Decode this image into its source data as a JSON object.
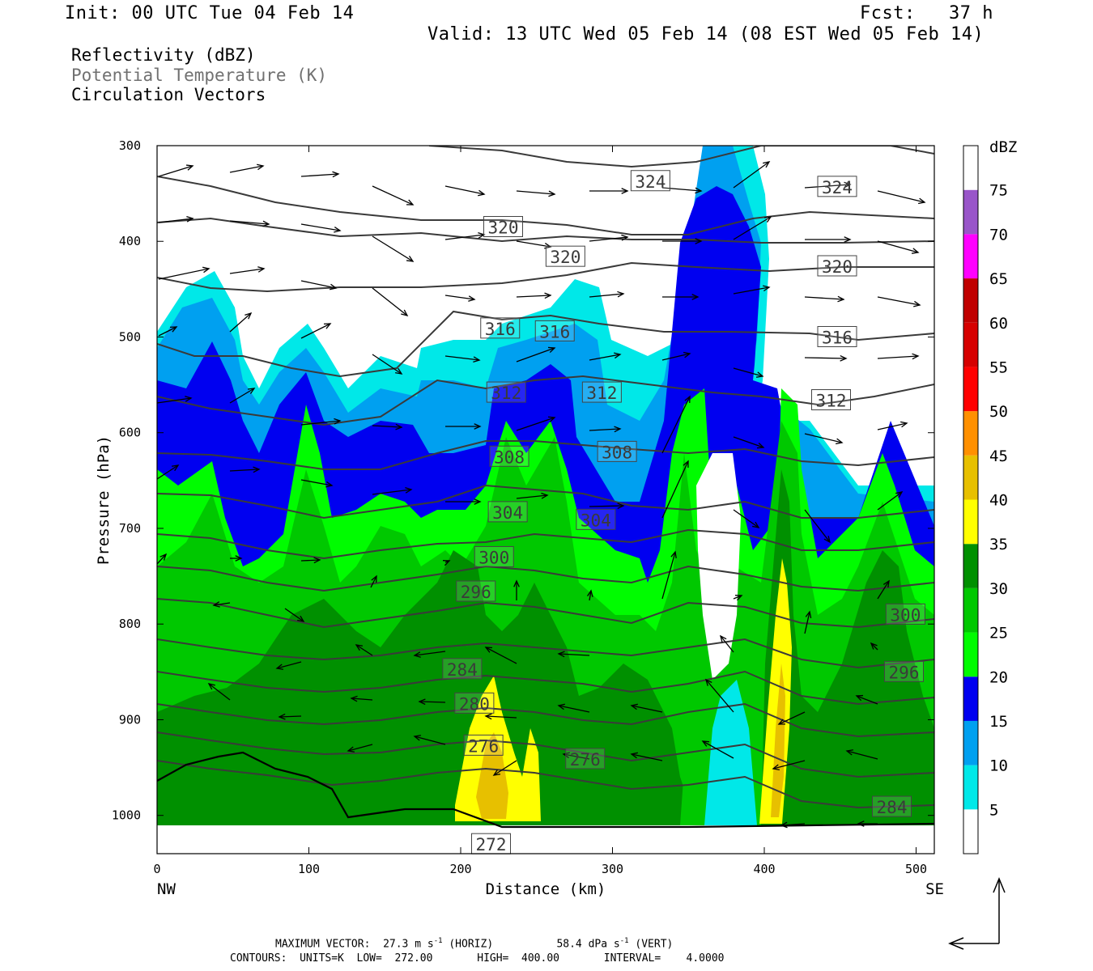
{
  "header": {
    "init": "Init: 00 UTC Tue 04 Feb 14",
    "fcst": "Fcst:   37 h",
    "valid": "Valid: 13 UTC Wed 05 Feb 14 (08 EST Wed 05 Feb 14)"
  },
  "fields": [
    "Reflectivity (dBZ)",
    "Potential Temperature (K)",
    "Circulation Vectors"
  ],
  "footer": {
    "max_label": "MAXIMUM VECTOR:",
    "horiz_value": "27.3 m s",
    "horiz_suffix": " (HORIZ)",
    "vert_value": "58.4 dPa s",
    "vert_suffix": " (VERT)",
    "exp": "-1",
    "contours": "CONTOURS:  UNITS=K  LOW=  272.00       HIGH=  400.00       INTERVAL=    4.0000"
  },
  "colors": {
    "dbz": [
      "#00e8e8",
      "#00a0f0",
      "#0000f0",
      "#00fc00",
      "#00c800",
      "#009000",
      "#ffff00",
      "#e7c000",
      "#ff9000",
      "#ff0000",
      "#d60000",
      "#c00000",
      "#ff00ff",
      "#9955c9",
      "#ffffff"
    ],
    "theta_line": "#3a3a3a",
    "terrain": "#ffffff"
  },
  "chart_data": {
    "type": "cross-section",
    "xlabel": "Distance (km)",
    "ylabel": "Pressure (hPa)",
    "x_ticks": [
      0,
      100,
      200,
      300,
      400,
      500
    ],
    "y_ticks": [
      300,
      400,
      500,
      600,
      700,
      800,
      900,
      1000
    ],
    "xlim": [
      0,
      512
    ],
    "ylim": [
      1040,
      300
    ],
    "left_end": "NW",
    "right_end": "SE",
    "colorbar": {
      "title": "dBZ",
      "levels": [
        5,
        10,
        15,
        20,
        25,
        30,
        35,
        40,
        45,
        50,
        55,
        60,
        65,
        70,
        75
      ]
    },
    "theta_labels": [
      {
        "value": "324",
        "x": 325,
        "p": 337
      },
      {
        "value": "324",
        "x": 448,
        "p": 343
      },
      {
        "value": "320",
        "x": 228,
        "p": 385
      },
      {
        "value": "320",
        "x": 269,
        "p": 416
      },
      {
        "value": "320",
        "x": 448,
        "p": 426
      },
      {
        "value": "316",
        "x": 226,
        "p": 491
      },
      {
        "value": "316",
        "x": 262,
        "p": 494
      },
      {
        "value": "316",
        "x": 448,
        "p": 500
      },
      {
        "value": "312",
        "x": 230,
        "p": 558
      },
      {
        "value": "312",
        "x": 293,
        "p": 558
      },
      {
        "value": "312",
        "x": 444,
        "p": 566
      },
      {
        "value": "308",
        "x": 232,
        "p": 625
      },
      {
        "value": "308",
        "x": 303,
        "p": 620
      },
      {
        "value": "304",
        "x": 231,
        "p": 683
      },
      {
        "value": "304",
        "x": 289,
        "p": 691
      },
      {
        "value": "300",
        "x": 222,
        "p": 730
      },
      {
        "value": "300",
        "x": 493,
        "p": 790
      },
      {
        "value": "296",
        "x": 210,
        "p": 766
      },
      {
        "value": "296",
        "x": 492,
        "p": 850
      },
      {
        "value": "284",
        "x": 201,
        "p": 847
      },
      {
        "value": "280",
        "x": 209,
        "p": 883
      },
      {
        "value": "276",
        "x": 215,
        "p": 927
      },
      {
        "value": "276",
        "x": 282,
        "p": 941
      },
      {
        "value": "284",
        "x": 484,
        "p": 991
      },
      {
        "value": "272",
        "x": 220,
        "p": 1030
      }
    ]
  }
}
